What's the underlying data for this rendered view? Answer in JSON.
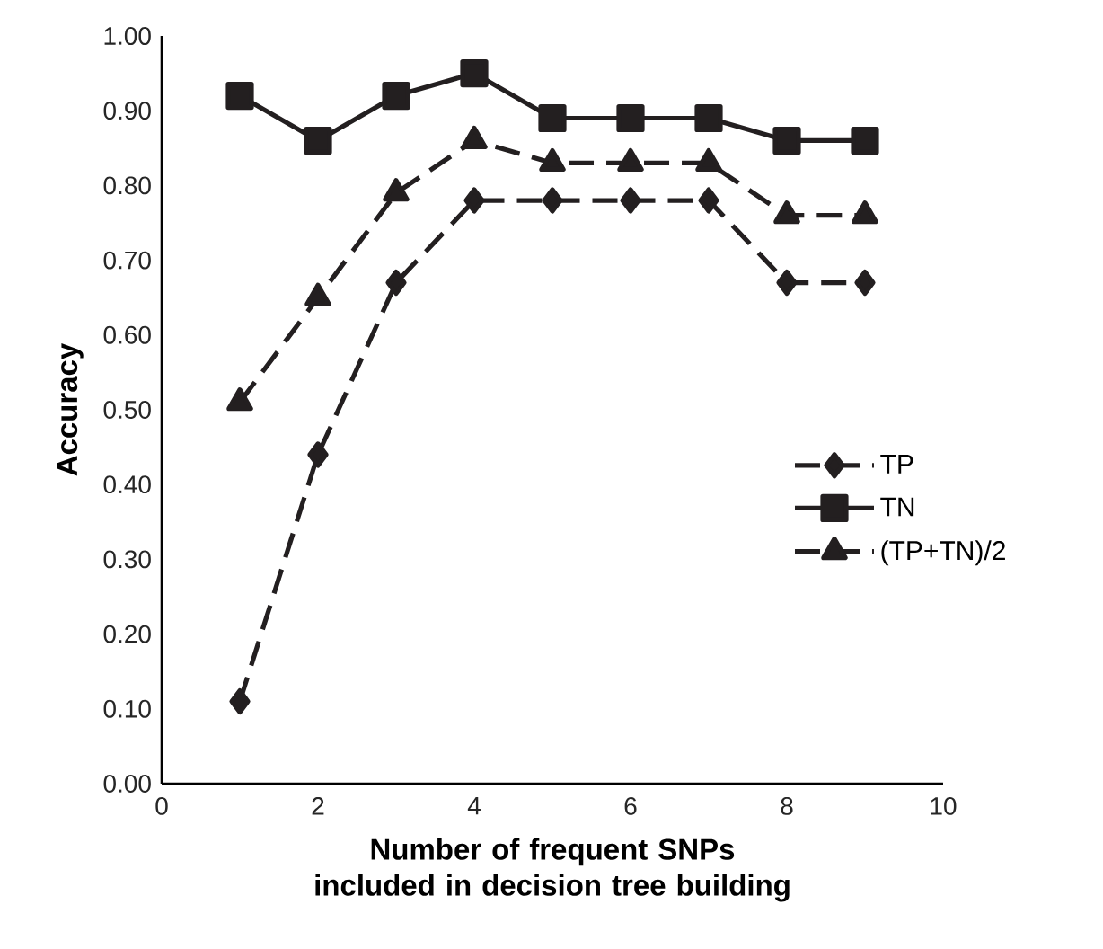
{
  "chart_data": {
    "type": "line",
    "xlabel": "Number of frequent SNPs included in decision tree building",
    "ylabel": "Accuracy",
    "x": [
      1,
      2,
      3,
      4,
      5,
      6,
      7,
      8,
      9
    ],
    "series": [
      {
        "name": "TP",
        "color": "#231f20",
        "marker": "diamond",
        "line_style": "dashed",
        "values": [
          0.11,
          0.44,
          0.67,
          0.78,
          0.78,
          0.78,
          0.78,
          0.67,
          0.67
        ]
      },
      {
        "name": "TN",
        "color": "#231f20",
        "marker": "square",
        "line_style": "solid",
        "values": [
          0.92,
          0.86,
          0.92,
          0.95,
          0.89,
          0.89,
          0.89,
          0.86,
          0.86
        ]
      },
      {
        "name": "(TP+TN)/2",
        "color": "#231f20",
        "marker": "triangle",
        "line_style": "dashed",
        "values": [
          0.51,
          0.65,
          0.79,
          0.86,
          0.83,
          0.83,
          0.83,
          0.76,
          0.76
        ]
      }
    ],
    "xlim": [
      0,
      10
    ],
    "xticks": [
      0,
      2,
      4,
      6,
      8,
      10
    ],
    "ylim": [
      0,
      1
    ],
    "yticks": [
      {
        "value": 0,
        "label": "0.00"
      },
      {
        "value": 0.1,
        "label": "0.10"
      },
      {
        "value": 0.2,
        "label": "0.20"
      },
      {
        "value": 0.3,
        "label": "0.30"
      },
      {
        "value": 0.4,
        "label": "0.40"
      },
      {
        "value": 0.5,
        "label": "0.50"
      },
      {
        "value": 0.6,
        "label": "0.60"
      },
      {
        "value": 0.7,
        "label": "0.70"
      },
      {
        "value": 0.8,
        "label": "0.80"
      },
      {
        "value": 0.9,
        "label": "0.90"
      },
      {
        "value": 1,
        "label": "1.00"
      }
    ],
    "legend": "right",
    "grid": false
  }
}
